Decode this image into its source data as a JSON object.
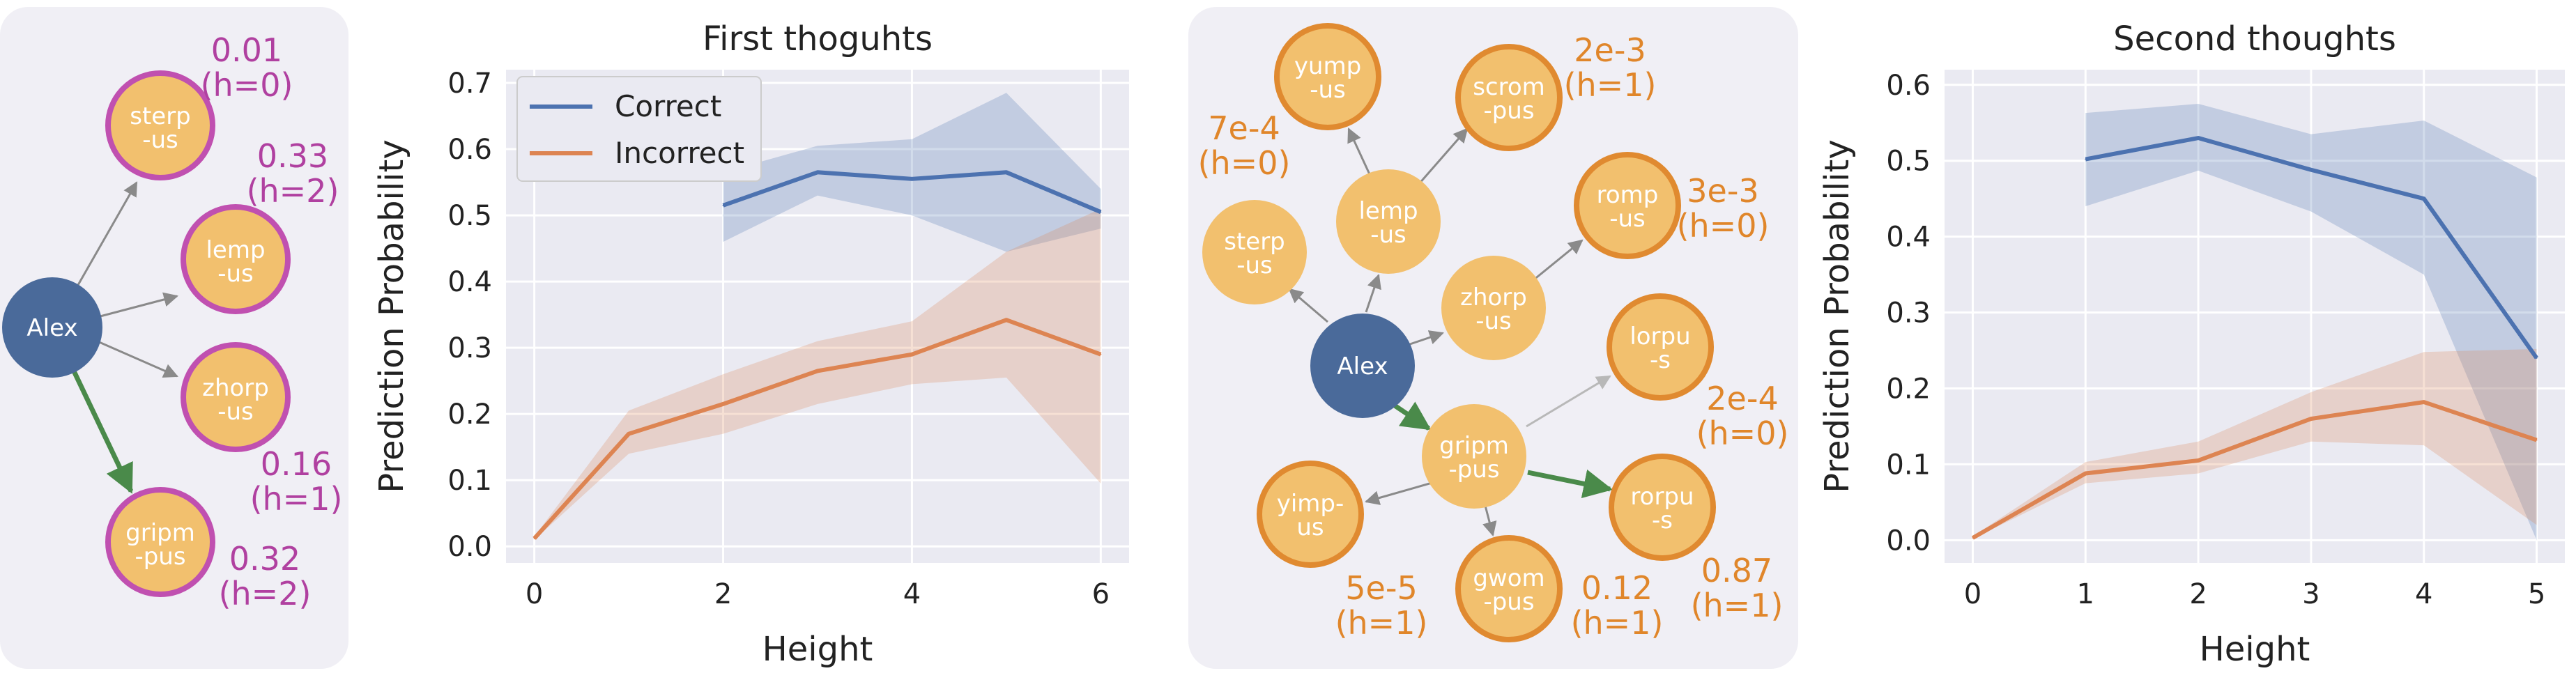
{
  "colors": {
    "correct": "#4c72b0",
    "incorrect": "#dd8452",
    "plot_bg": "#eaeaf2",
    "panel_bg": "#f0eff5",
    "node_fill": "#f2c06e",
    "root_fill": "#4a6a9a",
    "tree1_border": "#c050b0",
    "tree2_border": "#e08a30",
    "tree1_ann": "#b040a0",
    "tree2_ann": "#e0862a",
    "green_edge": "#4a8a4a",
    "gray_edge": "#8a8a8a"
  },
  "tree1": {
    "root": "Alex",
    "nodes": [
      {
        "id": "sterp",
        "l1": "sterp",
        "l2": "-us",
        "p": "0.01",
        "h": "(h=0)"
      },
      {
        "id": "lemp",
        "l1": "lemp",
        "l2": "-us",
        "p": "0.33",
        "h": "(h=2)"
      },
      {
        "id": "zhorp",
        "l1": "zhorp",
        "l2": "-us",
        "p": "0.16",
        "h": "(h=1)"
      },
      {
        "id": "gripm",
        "l1": "gripm",
        "l2": "-pus",
        "p": "0.32",
        "h": "(h=2)"
      }
    ]
  },
  "tree2": {
    "root": "Alex",
    "nodes": [
      {
        "id": "yump",
        "l1": "yump",
        "l2": "-us"
      },
      {
        "id": "scrom",
        "l1": "scrom",
        "l2": "-pus",
        "p": "2e-3",
        "h": "(h=1)"
      },
      {
        "id": "sterp",
        "l1": "sterp",
        "l2": "-us",
        "p": "7e-4",
        "h": "(h=0)"
      },
      {
        "id": "lemp",
        "l1": "lemp",
        "l2": "-us"
      },
      {
        "id": "romp",
        "l1": "romp",
        "l2": "-us",
        "p": "3e-3",
        "h": "(h=0)"
      },
      {
        "id": "zhorp",
        "l1": "zhorp",
        "l2": "-us"
      },
      {
        "id": "lorpu",
        "l1": "lorpu",
        "l2": "-s",
        "p": "2e-4",
        "h": "(h=0)"
      },
      {
        "id": "gripm",
        "l1": "gripm",
        "l2": "-pus"
      },
      {
        "id": "yimp",
        "l1": "yimp-",
        "l2": "us",
        "p": "5e-5",
        "h": "(h=1)"
      },
      {
        "id": "gwom",
        "l1": "gwom",
        "l2": "-pus",
        "p": "0.12",
        "h": "(h=1)"
      },
      {
        "id": "rorpu",
        "l1": "rorpu",
        "l2": "-s",
        "p": "0.87",
        "h": "(h=1)"
      }
    ]
  },
  "chart_data": [
    {
      "type": "line",
      "title": "First thoguhts",
      "xlabel": "Height",
      "ylabel": "Prediction Probability",
      "xlim": [
        -0.3,
        6.3
      ],
      "ylim": [
        -0.025,
        0.72
      ],
      "xticks": [
        "0",
        "2",
        "4",
        "6"
      ],
      "yticks": [
        "0.0",
        "0.1",
        "0.2",
        "0.3",
        "0.4",
        "0.5",
        "0.6",
        "0.7"
      ],
      "grid": true,
      "legend": "top-left",
      "series": [
        {
          "name": "Correct",
          "x": [
            2,
            3,
            4,
            5,
            6
          ],
          "values": [
            0.515,
            0.565,
            0.555,
            0.565,
            0.505
          ],
          "lower": [
            0.46,
            0.53,
            0.5,
            0.445,
            0.48
          ],
          "upper": [
            0.565,
            0.605,
            0.615,
            0.685,
            0.54
          ]
        },
        {
          "name": "Incorrect",
          "x": [
            0,
            1,
            2,
            3,
            4,
            5,
            6
          ],
          "values": [
            0.012,
            0.17,
            0.215,
            0.265,
            0.29,
            0.342,
            0.29
          ],
          "lower": [
            0.01,
            0.14,
            0.17,
            0.215,
            0.245,
            0.255,
            0.095
          ],
          "upper": [
            0.015,
            0.205,
            0.26,
            0.31,
            0.34,
            0.445,
            0.51
          ]
        }
      ]
    },
    {
      "type": "line",
      "title": "Second thoughts",
      "xlabel": "Height",
      "ylabel": "Prediction Probability",
      "xlim": [
        -0.25,
        5.25
      ],
      "ylim": [
        -0.03,
        0.62
      ],
      "xticks": [
        "0",
        "1",
        "2",
        "3",
        "4",
        "5"
      ],
      "yticks": [
        "0.0",
        "0.1",
        "0.2",
        "0.3",
        "0.4",
        "0.5",
        "0.6"
      ],
      "grid": true,
      "series": [
        {
          "name": "Correct",
          "x": [
            1,
            2,
            3,
            4,
            5
          ],
          "values": [
            0.502,
            0.53,
            0.488,
            0.45,
            0.24
          ],
          "lower": [
            0.44,
            0.487,
            0.433,
            0.35,
            0.0
          ],
          "upper": [
            0.563,
            0.575,
            0.535,
            0.553,
            0.478
          ]
        },
        {
          "name": "Incorrect",
          "x": [
            0,
            1,
            2,
            3,
            4,
            5
          ],
          "values": [
            0.003,
            0.088,
            0.105,
            0.16,
            0.182,
            0.132
          ],
          "lower": [
            0.002,
            0.075,
            0.088,
            0.13,
            0.125,
            0.02
          ],
          "upper": [
            0.005,
            0.103,
            0.13,
            0.195,
            0.248,
            0.252
          ]
        }
      ]
    }
  ]
}
